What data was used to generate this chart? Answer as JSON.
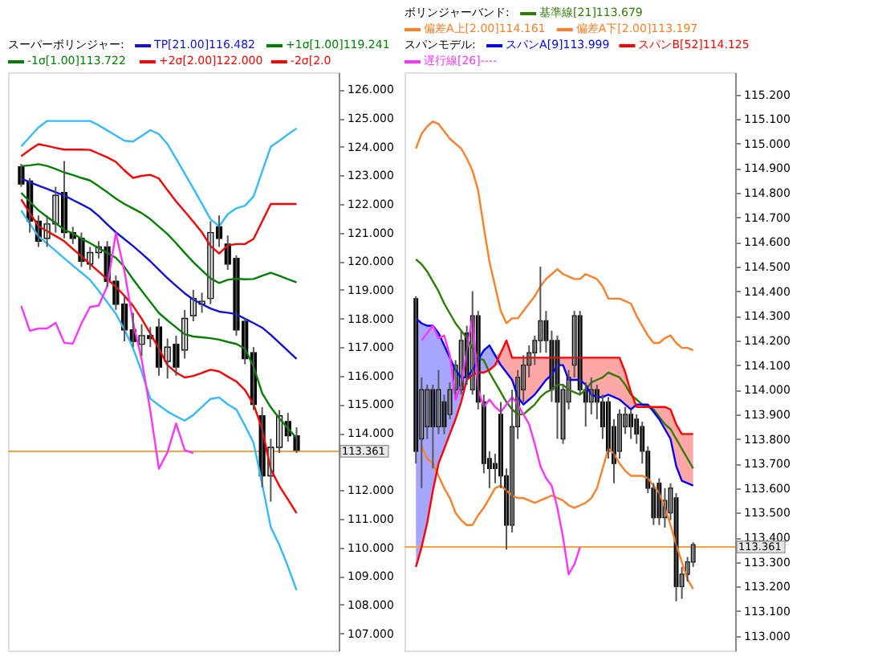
{
  "chart_data": [
    {
      "type": "candlestick",
      "title": "スーパーボリンジャー:",
      "tick_labels": "y",
      "legend": "top",
      "ylim": [
        106.4,
        126.6
      ],
      "yticks": [
        {
          "value": 107,
          "label": "107.000"
        },
        {
          "value": 108,
          "label": "108.000"
        },
        {
          "value": 109,
          "label": "109.000"
        },
        {
          "value": 110,
          "label": "110.000"
        },
        {
          "value": 111,
          "label": "111.000"
        },
        {
          "value": 112,
          "label": "112.000"
        },
        {
          "value": 114,
          "label": "114.000"
        },
        {
          "value": 115,
          "label": "115.000"
        },
        {
          "value": 116,
          "label": "116.000"
        },
        {
          "value": 117,
          "label": "117.000"
        },
        {
          "value": 118,
          "label": "118.000"
        },
        {
          "value": 119,
          "label": "119.000"
        },
        {
          "value": 120,
          "label": "120.000"
        },
        {
          "value": 121,
          "label": "121.000"
        },
        {
          "value": 122,
          "label": "122.000"
        },
        {
          "value": 123,
          "label": "123.000"
        },
        {
          "value": 124,
          "label": "124.000"
        },
        {
          "value": 125,
          "label": "125.000"
        },
        {
          "value": 126,
          "label": "126.000"
        }
      ],
      "categories": [
        null,
        null,
        null,
        null,
        null,
        null,
        null,
        null,
        null,
        null,
        null,
        null,
        null,
        null,
        null,
        null,
        null,
        null,
        null,
        null,
        null,
        null,
        null,
        null,
        null,
        null,
        null,
        null,
        null,
        null,
        null,
        null,
        null
      ],
      "ohlc": [
        [
          123.3,
          123.4,
          122.6,
          122.7
        ],
        [
          122.8,
          122.9,
          121.0,
          121.4
        ],
        [
          121.4,
          121.6,
          120.5,
          120.7
        ],
        [
          120.8,
          121.6,
          120.5,
          121.3
        ],
        [
          121.3,
          122.6,
          121.0,
          122.3
        ],
        [
          122.4,
          123.5,
          120.8,
          121.0
        ],
        [
          121.0,
          121.2,
          120.6,
          120.8
        ],
        [
          120.8,
          121.0,
          119.8,
          120.0
        ],
        [
          119.9,
          120.5,
          119.7,
          120.3
        ],
        [
          120.3,
          120.7,
          120.1,
          120.5
        ],
        [
          120.5,
          120.7,
          119.1,
          119.3
        ],
        [
          119.3,
          119.5,
          118.3,
          118.5
        ],
        [
          118.5,
          118.8,
          117.2,
          117.6
        ],
        [
          117.6,
          118.2,
          117.0,
          117.2
        ],
        [
          117.1,
          117.8,
          116.7,
          117.4
        ],
        [
          117.4,
          117.7,
          117.0,
          117.3
        ],
        [
          117.7,
          118.0,
          116.0,
          116.3
        ],
        [
          116.5,
          117.3,
          115.9,
          117.0
        ],
        [
          117.1,
          117.4,
          116.0,
          116.3
        ],
        [
          116.9,
          118.3,
          116.6,
          118.0
        ],
        [
          118.1,
          119.0,
          117.9,
          118.7
        ],
        [
          118.5,
          118.9,
          118.2,
          118.6
        ],
        [
          118.7,
          121.4,
          118.5,
          121.0
        ],
        [
          121.2,
          121.6,
          120.5,
          120.8
        ],
        [
          120.6,
          120.9,
          119.7,
          119.9
        ],
        [
          120.1,
          120.2,
          117.4,
          117.6
        ],
        [
          117.9,
          118.0,
          116.4,
          116.6
        ],
        [
          116.8,
          117.0,
          114.8,
          115.0
        ],
        [
          114.6,
          114.9,
          112.1,
          112.5
        ],
        [
          112.5,
          113.8,
          111.6,
          113.5
        ],
        [
          113.5,
          114.8,
          113.3,
          114.6
        ],
        [
          114.4,
          114.7,
          113.7,
          113.9
        ],
        [
          113.9,
          114.2,
          113.3,
          113.4
        ]
      ],
      "ref_lines": [
        {
          "axis": "y",
          "value": 113.361,
          "label": "113.361",
          "color": "#ffa040"
        }
      ],
      "series": [
        {
          "type": "line",
          "name": "TP[21.00]116.482",
          "color": "#1010e0",
          "values": [
            122.89,
            122.76,
            122.64,
            122.53,
            122.41,
            122.3,
            122.14,
            121.99,
            121.83,
            121.58,
            121.29,
            121.01,
            120.77,
            120.53,
            120.27,
            120.0,
            119.7,
            119.41,
            119.14,
            118.88,
            118.66,
            118.5,
            118.35,
            118.24,
            118.2,
            118.15,
            117.99,
            117.84,
            117.68,
            117.43,
            117.15,
            116.87,
            116.59
          ]
        },
        {
          "type": "line",
          "name": "+1σ[1.00]119.241",
          "color": "#008000",
          "values": [
            123.32,
            123.35,
            123.39,
            123.33,
            123.22,
            123.1,
            123.01,
            122.91,
            122.82,
            122.62,
            122.41,
            122.19,
            122.0,
            121.84,
            121.68,
            121.47,
            121.21,
            120.95,
            120.63,
            120.29,
            119.97,
            119.68,
            119.4,
            119.24,
            119.35,
            119.39,
            119.37,
            119.38,
            119.49,
            119.6,
            119.49,
            119.37,
            119.26
          ]
        },
        {
          "type": "line",
          "name": "-1σ[1.00]113.722",
          "color": "#008000",
          "values": [
            122.39,
            122.08,
            121.78,
            121.55,
            121.33,
            121.1,
            120.97,
            120.79,
            120.63,
            120.46,
            120.29,
            120.12,
            119.8,
            119.37,
            118.97,
            118.58,
            118.19,
            117.93,
            117.69,
            117.45,
            117.37,
            117.34,
            117.31,
            117.26,
            117.18,
            117.11,
            116.94,
            116.32,
            115.39,
            114.9,
            114.51,
            114.16,
            113.82
          ]
        },
        {
          "type": "line",
          "name": "+2σ[2.00]122.000",
          "color": "#ff0000",
          "values": [
            123.67,
            123.89,
            124.09,
            124.03,
            123.96,
            123.9,
            123.9,
            123.9,
            123.89,
            123.76,
            123.63,
            123.47,
            123.17,
            122.91,
            122.98,
            123.02,
            122.89,
            122.48,
            122.09,
            121.74,
            121.38,
            121.01,
            120.53,
            120.27,
            120.55,
            120.6,
            120.6,
            120.78,
            121.39,
            122.0,
            122.0,
            122.0,
            122.0
          ]
        },
        {
          "type": "line",
          "name": "-2σ[2.0",
          "color": "#ff0000",
          "values": [
            122.16,
            121.68,
            121.23,
            121.05,
            120.88,
            120.7,
            120.43,
            120.17,
            119.9,
            119.64,
            119.37,
            119.11,
            118.79,
            118.44,
            117.99,
            117.47,
            116.95,
            116.37,
            116.11,
            115.94,
            115.99,
            116.1,
            116.21,
            116.15,
            115.97,
            115.8,
            115.5,
            115.0,
            114.14,
            112.73,
            112.15,
            111.68,
            111.2
          ]
        },
        {
          "type": "line",
          "color": "#33bbff",
          "values": [
            124.01,
            124.34,
            124.67,
            124.9,
            124.9,
            124.9,
            124.9,
            124.9,
            124.9,
            124.75,
            124.57,
            124.39,
            124.21,
            124.18,
            124.38,
            124.58,
            124.44,
            124.09,
            123.58,
            123.06,
            122.54,
            122.01,
            121.47,
            121.22,
            121.64,
            121.85,
            121.94,
            122.26,
            123.13,
            124.0,
            124.21,
            124.43,
            124.64
          ]
        },
        {
          "type": "line",
          "color": "#33bbff",
          "values": [
            121.77,
            121.31,
            120.87,
            120.62,
            120.36,
            120.1,
            119.85,
            119.6,
            119.35,
            118.97,
            118.57,
            118.16,
            117.61,
            116.96,
            116.14,
            115.2,
            114.97,
            114.75,
            114.58,
            114.43,
            114.63,
            114.91,
            115.19,
            115.24,
            115.0,
            114.82,
            114.26,
            113.66,
            112.22,
            110.71,
            110.09,
            109.33,
            108.51
          ]
        },
        {
          "type": "line",
          "color": "#ff33ff",
          "values": [
            118.44,
            117.57,
            117.65,
            117.65,
            117.85,
            117.15,
            117.12,
            117.83,
            118.4,
            118.45,
            119.12,
            120.98,
            119.65,
            117.87,
            116.56,
            114.78,
            112.75,
            113.33,
            114.33,
            113.4,
            113.3,
            null,
            null,
            null,
            null,
            null,
            null,
            null,
            null,
            null,
            null,
            null,
            null
          ]
        }
      ]
    },
    {
      "type": "candlestick",
      "title": "ボリンジャーバンド:",
      "subtitle": "スパンモデル:",
      "tick_labels": "y",
      "legend": "top",
      "ylim": [
        112.94,
        115.29
      ],
      "yticks": [
        {
          "value": 113,
          "label": "113.000"
        },
        {
          "value": 113.1,
          "label": "113.100"
        },
        {
          "value": 113.2,
          "label": "113.200"
        },
        {
          "value": 113.3,
          "label": "113.300"
        },
        {
          "value": 113.4,
          "label": "113.400"
        },
        {
          "value": 113.5,
          "label": "113.500"
        },
        {
          "value": 113.6,
          "label": "113.600"
        },
        {
          "value": 113.7,
          "label": "113.700"
        },
        {
          "value": 113.8,
          "label": "113.800"
        },
        {
          "value": 113.9,
          "label": "113.900"
        },
        {
          "value": 114,
          "label": "114.000"
        },
        {
          "value": 114.1,
          "label": "114.100"
        },
        {
          "value": 114.2,
          "label": "114.200"
        },
        {
          "value": 114.3,
          "label": "114.300"
        },
        {
          "value": 114.4,
          "label": "114.400"
        },
        {
          "value": 114.5,
          "label": "114.500"
        },
        {
          "value": 114.6,
          "label": "114.600"
        },
        {
          "value": 114.7,
          "label": "114.700"
        },
        {
          "value": 114.8,
          "label": "114.800"
        },
        {
          "value": 114.9,
          "label": "114.900"
        },
        {
          "value": 115,
          "label": "115.000"
        },
        {
          "value": 115.1,
          "label": "115.100"
        },
        {
          "value": 115.2,
          "label": "115.200"
        }
      ],
      "categories": [
        null,
        null,
        null,
        null,
        null,
        null,
        null,
        null,
        null,
        null,
        null,
        null,
        null,
        null,
        null,
        null,
        null,
        null,
        null,
        null,
        null,
        null,
        null,
        null,
        null,
        null,
        null,
        null,
        null,
        null,
        null,
        null,
        null,
        null,
        null,
        null,
        null,
        null,
        null,
        null,
        null,
        null,
        null,
        null,
        null,
        null,
        null,
        null,
        null,
        null
      ],
      "ohlc": [
        [
          114.37,
          114.38,
          113.7,
          113.75
        ],
        [
          113.8,
          114.05,
          113.6,
          114.0
        ],
        [
          113.85,
          114.02,
          113.8,
          114.0
        ],
        [
          114.0,
          114.02,
          113.68,
          113.85
        ],
        [
          113.85,
          114.08,
          113.82,
          114.0
        ],
        [
          113.95,
          113.98,
          113.82,
          113.85
        ],
        [
          113.9,
          114.03,
          113.88,
          114.0
        ],
        [
          114.0,
          114.12,
          113.98,
          114.1
        ],
        [
          114.0,
          114.24,
          113.98,
          114.2
        ],
        [
          114.23,
          114.26,
          114.02,
          114.05
        ],
        [
          114.0,
          114.4,
          113.98,
          114.3
        ],
        [
          114.3,
          114.32,
          113.92,
          113.95
        ],
        [
          113.95,
          113.98,
          113.66,
          113.7
        ],
        [
          113.72,
          113.75,
          113.6,
          113.68
        ],
        [
          113.7,
          113.74,
          113.62,
          113.68
        ],
        [
          113.9,
          113.95,
          113.6,
          113.65
        ],
        [
          113.65,
          113.68,
          113.35,
          113.45
        ],
        [
          113.45,
          114.0,
          113.42,
          113.85
        ],
        [
          113.85,
          114.08,
          113.8,
          114.05
        ],
        [
          114.0,
          114.14,
          113.95,
          114.1
        ],
        [
          114.1,
          114.18,
          114.05,
          114.15
        ],
        [
          114.15,
          114.22,
          114.1,
          114.2
        ],
        [
          114.2,
          114.5,
          114.15,
          114.28
        ],
        [
          114.28,
          114.32,
          114.15,
          114.2
        ],
        [
          114.2,
          114.24,
          113.95,
          114.0
        ],
        [
          114.2,
          114.22,
          113.8,
          113.95
        ],
        [
          113.8,
          114.02,
          113.78,
          114.0
        ],
        [
          113.95,
          114.08,
          113.92,
          114.05
        ],
        [
          114.1,
          114.32,
          114.05,
          114.3
        ],
        [
          114.3,
          114.32,
          113.98,
          114.0
        ],
        [
          114.0,
          114.03,
          113.85,
          113.95
        ],
        [
          113.95,
          114.05,
          113.9,
          114.0
        ],
        [
          114.0,
          114.02,
          113.88,
          113.95
        ],
        [
          113.95,
          113.98,
          113.8,
          113.85
        ],
        [
          113.95,
          113.97,
          113.72,
          113.75
        ],
        [
          113.85,
          113.88,
          113.62,
          113.7
        ],
        [
          113.75,
          113.92,
          113.72,
          113.9
        ],
        [
          113.85,
          113.93,
          113.82,
          113.9
        ],
        [
          113.9,
          113.92,
          113.8,
          113.85
        ],
        [
          113.88,
          113.9,
          113.78,
          113.82
        ],
        [
          113.85,
          113.87,
          113.7,
          113.75
        ],
        [
          113.75,
          113.77,
          113.58,
          113.6
        ],
        [
          113.6,
          113.62,
          113.45,
          113.48
        ],
        [
          113.62,
          113.64,
          113.45,
          113.48
        ],
        [
          113.48,
          113.6,
          113.44,
          113.55
        ],
        [
          113.5,
          113.62,
          113.47,
          113.6
        ],
        [
          113.56,
          113.58,
          113.14,
          113.2
        ],
        [
          113.2,
          113.28,
          113.15,
          113.25
        ],
        [
          113.25,
          113.32,
          113.22,
          113.3
        ],
        [
          113.3,
          113.38,
          113.28,
          113.37
        ]
      ],
      "ref_lines": [
        {
          "axis": "y",
          "value": 113.361,
          "label": "113.361",
          "color": "#ffa040"
        }
      ],
      "series": [
        {
          "type": "line",
          "name": "基準線[21]113.679",
          "color": "#2e7d00",
          "values": [
            114.53,
            114.51,
            114.48,
            114.44,
            114.4,
            114.35,
            114.31,
            114.27,
            114.24,
            114.21,
            114.17,
            114.13,
            114.12,
            114.07,
            114.03,
            113.99,
            113.95,
            113.92,
            113.9,
            113.9,
            113.92,
            113.94,
            113.97,
            113.99,
            114.0,
            114.02,
            114.02,
            114.0,
            113.99,
            113.98,
            114.0,
            114.03,
            114.04,
            114.05,
            114.07,
            114.06,
            114.05,
            114.02,
            113.98,
            113.96,
            113.94,
            113.93,
            113.92,
            113.89,
            113.86,
            113.84,
            113.8,
            113.76,
            113.72,
            113.68
          ]
        },
        {
          "type": "line",
          "name": "偏差A上[2.00]114.161",
          "color": "#ff7f27",
          "values": [
            114.98,
            115.04,
            115.07,
            115.09,
            115.08,
            115.05,
            115.02,
            115.0,
            114.98,
            114.94,
            114.89,
            114.81,
            114.66,
            114.52,
            114.42,
            114.32,
            114.27,
            114.29,
            114.29,
            114.32,
            114.35,
            114.38,
            114.42,
            114.45,
            114.47,
            114.49,
            114.47,
            114.46,
            114.45,
            114.45,
            114.47,
            114.46,
            114.45,
            114.42,
            114.37,
            114.37,
            114.37,
            114.36,
            114.35,
            114.3,
            114.26,
            114.22,
            114.19,
            114.19,
            114.21,
            114.22,
            114.19,
            114.17,
            114.17,
            114.16
          ]
        },
        {
          "type": "line",
          "name": "偏差A下[2.00]113.197",
          "color": "#ff7f27",
          "values": [
            null,
            113.77,
            113.72,
            113.7,
            113.65,
            113.6,
            113.56,
            113.5,
            113.47,
            113.45,
            113.45,
            113.49,
            113.52,
            113.56,
            113.6,
            113.61,
            113.59,
            113.57,
            113.56,
            113.56,
            113.55,
            113.54,
            113.55,
            113.56,
            113.57,
            113.56,
            113.55,
            113.53,
            113.52,
            113.53,
            113.54,
            113.56,
            113.6,
            113.68,
            113.76,
            113.74,
            113.7,
            113.67,
            113.65,
            113.65,
            113.65,
            113.64,
            113.61,
            113.58,
            113.52,
            113.45,
            113.37,
            113.3,
            113.23,
            113.19
          ]
        },
        {
          "type": "line",
          "name": "スパンA[9]113.999",
          "color": "#0000ff",
          "values": [
            114.29,
            114.27,
            114.26,
            114.26,
            114.23,
            114.18,
            114.13,
            114.08,
            114.05,
            114.05,
            114.08,
            114.12,
            114.16,
            114.18,
            114.14,
            114.1,
            114.07,
            114.04,
            113.97,
            113.94,
            113.96,
            113.98,
            114.01,
            114.04,
            114.06,
            114.1,
            114.1,
            114.04,
            114.04,
            114.04,
            114.02,
            113.98,
            113.97,
            113.97,
            113.98,
            113.97,
            113.96,
            113.94,
            113.92,
            113.94,
            113.94,
            113.94,
            113.91,
            113.88,
            113.84,
            113.8,
            113.69,
            113.63,
            113.62,
            113.61
          ],
          "lower": [
            113.28,
            113.36,
            113.46,
            113.59,
            113.7,
            113.76,
            113.82,
            113.88,
            113.95,
            114.04,
            114.06,
            114.07,
            114.07,
            114.08,
            114.1,
            null,
            null,
            null,
            null,
            null,
            null,
            null,
            null,
            null,
            null,
            null,
            null,
            null,
            null,
            null,
            null,
            null,
            null,
            null,
            null,
            null,
            null,
            null,
            null,
            null,
            null,
            null,
            null,
            null,
            null,
            null,
            null,
            null,
            null,
            null
          ],
          "upper": [
            114.29,
            114.27,
            114.26,
            114.26,
            114.23,
            114.18,
            114.13,
            114.08,
            114.05,
            114.05,
            114.08,
            114.12,
            114.16,
            114.18,
            114.14,
            null,
            null,
            null,
            null,
            null,
            null,
            null,
            null,
            null,
            null,
            null,
            null,
            null,
            null,
            null,
            null,
            null,
            null,
            null,
            null,
            null,
            null,
            null,
            null,
            null,
            null,
            null,
            null,
            null,
            null,
            null,
            null,
            null,
            null,
            null
          ]
        },
        {
          "type": "line",
          "name": "スパンB[52]114.125",
          "color": "#ff0000",
          "values": [
            113.28,
            113.36,
            113.46,
            113.59,
            113.7,
            113.76,
            113.82,
            113.88,
            113.95,
            114.04,
            114.06,
            114.07,
            114.07,
            114.08,
            114.1,
            114.15,
            114.2,
            114.13,
            114.13,
            114.13,
            114.13,
            114.13,
            114.13,
            114.13,
            114.13,
            114.13,
            114.13,
            114.13,
            114.13,
            114.13,
            114.13,
            114.13,
            114.13,
            114.13,
            114.13,
            114.13,
            114.13,
            114.07,
            113.99,
            113.93,
            113.93,
            113.93,
            113.93,
            113.93,
            113.93,
            113.92,
            113.86,
            113.82,
            113.82,
            113.82
          ],
          "lower": [
            null,
            null,
            null,
            null,
            null,
            null,
            null,
            null,
            null,
            null,
            null,
            null,
            null,
            null,
            114.1,
            114.1,
            114.07,
            114.04,
            113.97,
            113.94,
            113.96,
            113.98,
            114.01,
            114.04,
            114.06,
            114.1,
            114.1,
            114.04,
            114.04,
            114.04,
            114.02,
            113.98,
            113.97,
            113.97,
            113.98,
            113.97,
            113.96,
            113.94,
            113.92,
            113.93,
            113.93,
            113.93,
            113.91,
            113.88,
            113.84,
            113.8,
            113.69,
            113.63,
            113.62,
            113.61
          ],
          "upper": [
            null,
            null,
            null,
            null,
            null,
            null,
            null,
            null,
            null,
            null,
            null,
            null,
            null,
            null,
            114.14,
            114.15,
            114.2,
            114.13,
            114.13,
            114.13,
            114.13,
            114.13,
            114.13,
            114.13,
            114.13,
            114.13,
            114.13,
            114.13,
            114.13,
            114.13,
            114.13,
            114.13,
            114.13,
            114.13,
            114.13,
            114.13,
            114.13,
            114.07,
            113.99,
            113.94,
            113.94,
            113.94,
            113.93,
            113.93,
            113.93,
            113.92,
            113.86,
            113.82,
            113.82,
            113.82
          ]
        },
        {
          "type": "line",
          "name": "遅行線[26]----",
          "color": "#ff33ff",
          "values": [
            null,
            114.2,
            114.23,
            114.26,
            114.21,
            114.22,
            114.14,
            113.96,
            114.02,
            114.16,
            114.3,
            114.0,
            113.93,
            113.96,
            113.93,
            113.91,
            113.94,
            113.97,
            113.94,
            113.9,
            113.86,
            113.78,
            113.69,
            113.64,
            113.61,
            113.52,
            113.4,
            113.25,
            113.29,
            113.36,
            null,
            null,
            null,
            null,
            null,
            null,
            null,
            null,
            null,
            null,
            null,
            null,
            null,
            null,
            null,
            null,
            null,
            null,
            null,
            null
          ]
        }
      ]
    }
  ]
}
